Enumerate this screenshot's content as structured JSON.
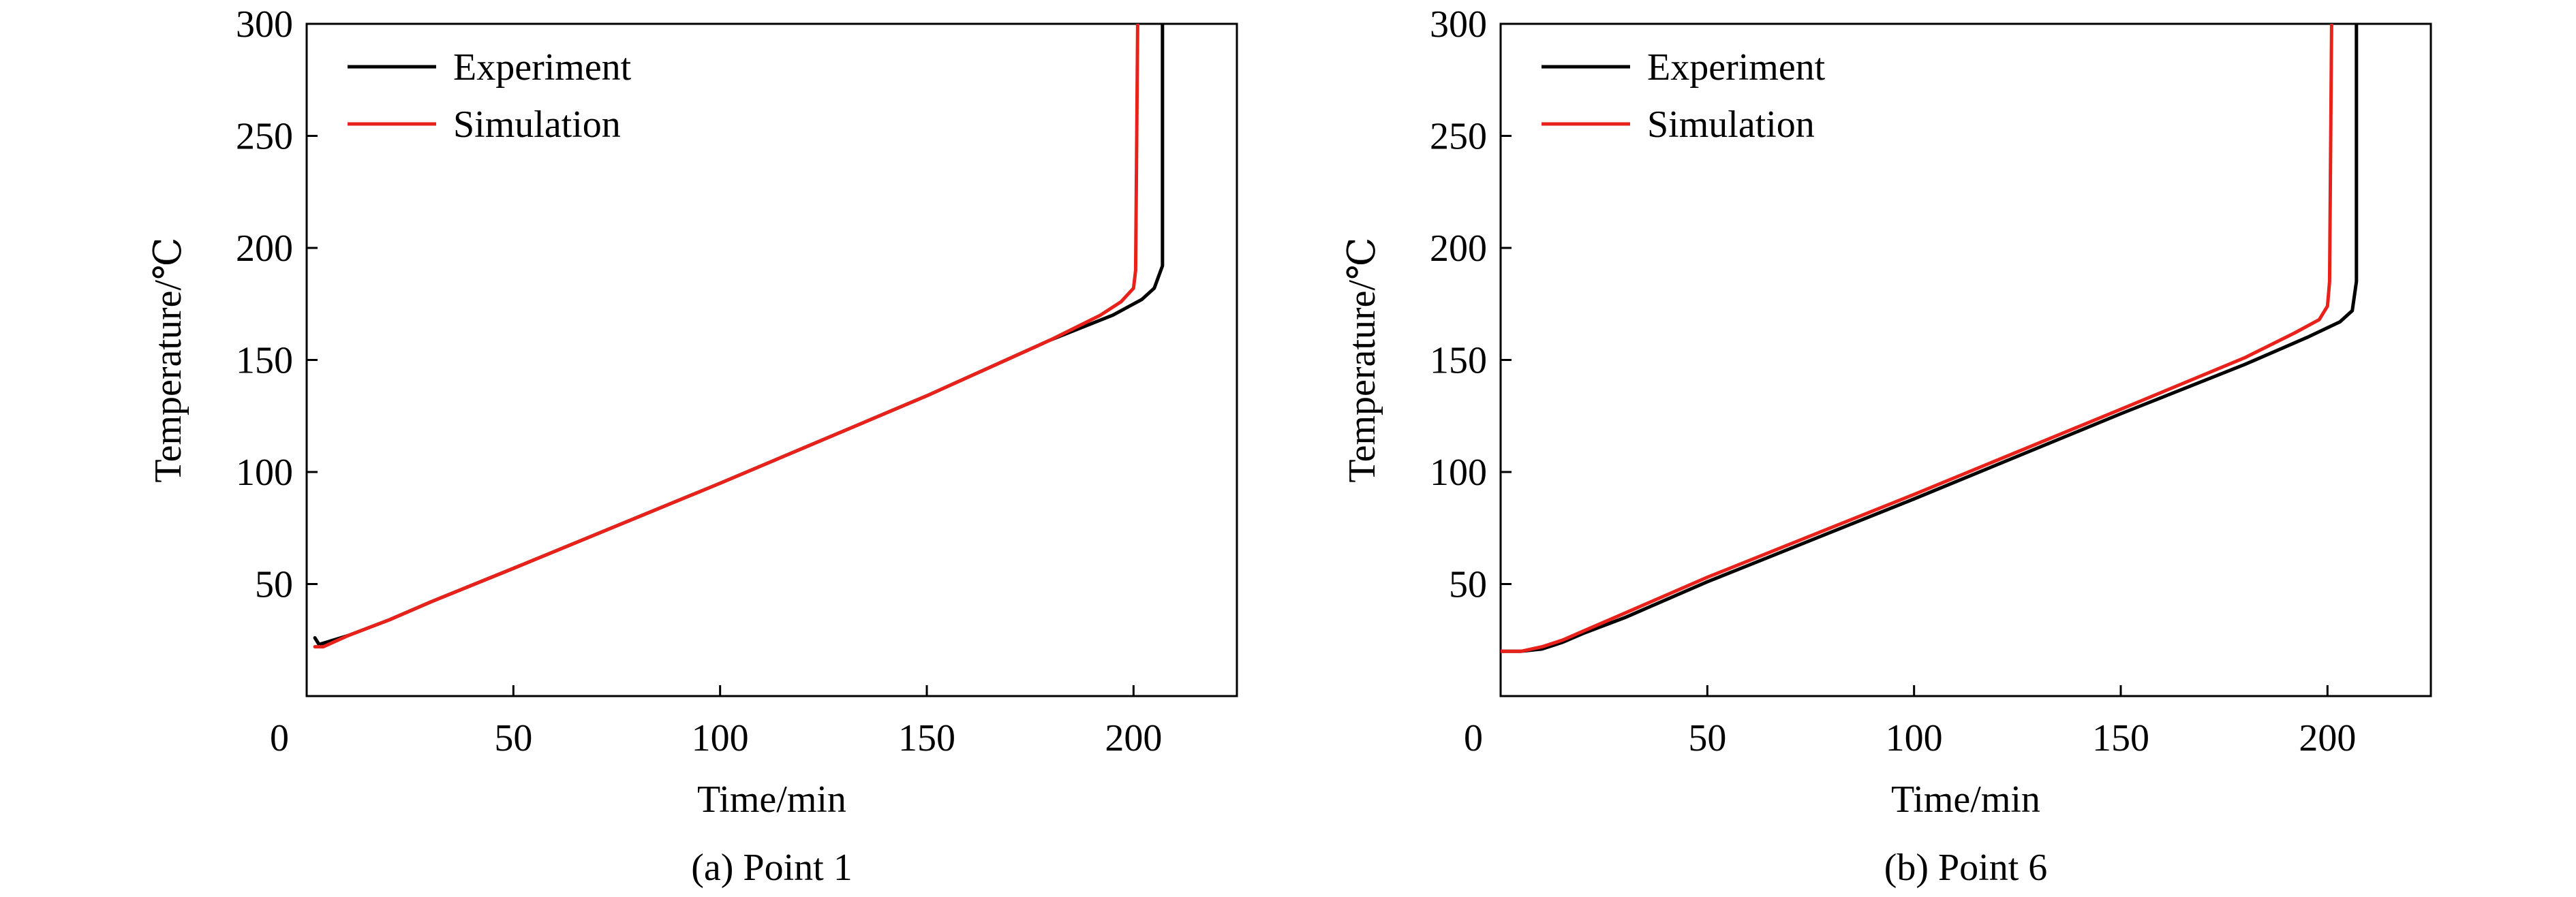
{
  "chart_data": [
    {
      "type": "line",
      "caption": "(a) Point 1",
      "xlabel": "Time/min",
      "ylabel": "Temperature/℃",
      "xlim": [
        0,
        225
      ],
      "ylim": [
        0,
        300
      ],
      "xticks": [
        0,
        50,
        100,
        150,
        200
      ],
      "yticks": [
        0,
        50,
        100,
        150,
        200,
        250,
        300
      ],
      "ytick_labels_shown": [
        50,
        100,
        150,
        200,
        250,
        300
      ],
      "origin_label": "0",
      "legend_position": "top-left",
      "grid": false,
      "series": [
        {
          "name": "Experiment",
          "color": "#000000",
          "points": [
            [
              2,
              26
            ],
            [
              3,
              23
            ],
            [
              10,
              27
            ],
            [
              20,
              34
            ],
            [
              30,
              42
            ],
            [
              50,
              57
            ],
            [
              100,
              95
            ],
            [
              150,
              134
            ],
            [
              180,
              159
            ],
            [
              195,
              170
            ],
            [
              202,
              177
            ],
            [
              205,
              182
            ],
            [
              207,
              192
            ],
            [
              207,
              300
            ]
          ]
        },
        {
          "name": "Simulation",
          "color": "#e8221a",
          "points": [
            [
              2,
              22
            ],
            [
              4,
              22
            ],
            [
              10,
              27
            ],
            [
              20,
              34
            ],
            [
              30,
              42
            ],
            [
              50,
              57
            ],
            [
              100,
              95
            ],
            [
              150,
              134
            ],
            [
              180,
              159
            ],
            [
              192,
              170
            ],
            [
              197,
              176
            ],
            [
              200,
              182
            ],
            [
              200.5,
              190
            ],
            [
              201,
              300
            ]
          ]
        }
      ]
    },
    {
      "type": "line",
      "caption": "(b) Point 6",
      "xlabel": "Time/min",
      "ylabel": "Temperature/℃",
      "xlim": [
        0,
        225
      ],
      "ylim": [
        0,
        300
      ],
      "xticks": [
        0,
        50,
        100,
        150,
        200
      ],
      "yticks": [
        0,
        50,
        100,
        150,
        200,
        250,
        300
      ],
      "ytick_labels_shown": [
        50,
        100,
        150,
        200,
        250,
        300
      ],
      "origin_label": "0",
      "legend_position": "top-left",
      "grid": false,
      "series": [
        {
          "name": "Experiment",
          "color": "#000000",
          "points": [
            [
              0,
              20
            ],
            [
              5,
              20
            ],
            [
              10,
              21
            ],
            [
              15,
              24
            ],
            [
              20,
              28
            ],
            [
              30,
              35
            ],
            [
              50,
              51
            ],
            [
              100,
              88
            ],
            [
              150,
              126
            ],
            [
              180,
              148
            ],
            [
              195,
              160
            ],
            [
              203,
              167
            ],
            [
              206,
              172
            ],
            [
              207,
              185
            ],
            [
              207,
              300
            ]
          ]
        },
        {
          "name": "Simulation",
          "color": "#e8221a",
          "points": [
            [
              0,
              20
            ],
            [
              5,
              20
            ],
            [
              10,
              22
            ],
            [
              15,
              25
            ],
            [
              20,
              29
            ],
            [
              30,
              37
            ],
            [
              50,
              53
            ],
            [
              100,
              90
            ],
            [
              150,
              128
            ],
            [
              180,
              151
            ],
            [
              192,
              162
            ],
            [
              198,
              168
            ],
            [
              200,
              174
            ],
            [
              200.5,
              185
            ],
            [
              201,
              300
            ]
          ]
        }
      ]
    }
  ]
}
